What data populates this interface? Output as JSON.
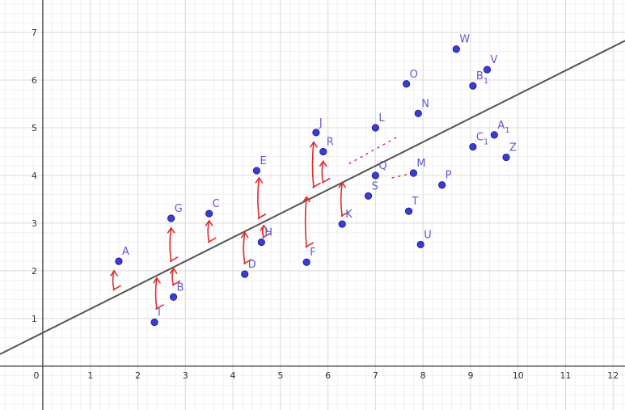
{
  "chart_data": {
    "type": "scatter",
    "title": "",
    "xlabel": "",
    "ylabel": "",
    "xlim": [
      -0.9,
      12.25
    ],
    "ylim": [
      -0.92,
      7.68
    ],
    "grid": true,
    "x_ticks": [
      0,
      1,
      2,
      3,
      4,
      5,
      6,
      7,
      8,
      9,
      10,
      11,
      12
    ],
    "y_ticks": [
      1,
      2,
      3,
      4,
      5,
      6,
      7
    ],
    "x_tick_labels": [
      "0",
      "1",
      "2",
      "3",
      "4",
      "5",
      "6",
      "7",
      "8",
      "9",
      "10",
      "11",
      "12"
    ],
    "y_tick_labels": [
      "1",
      "2",
      "3",
      "4",
      "5",
      "6",
      "7"
    ],
    "colors": {
      "point": "#3b3bd9",
      "label": "#5b5bd6",
      "line": "#555555",
      "residual": "#e02b2b",
      "grid": "#e6e6e6"
    },
    "points": [
      {
        "id": "A",
        "main": "A",
        "sub": "",
        "x": 1.6,
        "y": 2.2
      },
      {
        "id": "B",
        "main": "B",
        "sub": "",
        "x": 2.75,
        "y": 1.45
      },
      {
        "id": "C",
        "main": "C",
        "sub": "",
        "x": 3.5,
        "y": 3.2
      },
      {
        "id": "D",
        "main": "D",
        "sub": "",
        "x": 4.25,
        "y": 1.93
      },
      {
        "id": "E",
        "main": "E",
        "sub": "",
        "x": 4.5,
        "y": 4.1
      },
      {
        "id": "F",
        "main": "F",
        "sub": "",
        "x": 5.55,
        "y": 2.18
      },
      {
        "id": "G",
        "main": "G",
        "sub": "",
        "x": 2.7,
        "y": 3.1
      },
      {
        "id": "H",
        "main": "H",
        "sub": "",
        "x": 4.6,
        "y": 2.6
      },
      {
        "id": "I",
        "main": "I",
        "sub": "",
        "x": 2.35,
        "y": 0.92
      },
      {
        "id": "J",
        "main": "J",
        "sub": "",
        "x": 5.75,
        "y": 4.9
      },
      {
        "id": "K",
        "main": "K",
        "sub": "",
        "x": 6.3,
        "y": 2.98
      },
      {
        "id": "L",
        "main": "L",
        "sub": "",
        "x": 7.0,
        "y": 5.0
      },
      {
        "id": "M",
        "main": "M",
        "sub": "",
        "x": 7.8,
        "y": 4.05
      },
      {
        "id": "N",
        "main": "N",
        "sub": "",
        "x": 7.9,
        "y": 5.3
      },
      {
        "id": "O",
        "main": "O",
        "sub": "",
        "x": 7.65,
        "y": 5.92
      },
      {
        "id": "P",
        "main": "P",
        "sub": "",
        "x": 8.4,
        "y": 3.8
      },
      {
        "id": "Q",
        "main": "Q",
        "sub": "",
        "x": 7.0,
        "y": 4.0
      },
      {
        "id": "R",
        "main": "R",
        "sub": "",
        "x": 5.9,
        "y": 4.5
      },
      {
        "id": "S",
        "main": "S",
        "sub": "",
        "x": 6.85,
        "y": 3.57
      },
      {
        "id": "T",
        "main": "T",
        "sub": "",
        "x": 7.7,
        "y": 3.25
      },
      {
        "id": "U",
        "main": "U",
        "sub": "",
        "x": 7.95,
        "y": 2.55
      },
      {
        "id": "V",
        "main": "V",
        "sub": "",
        "x": 9.35,
        "y": 6.22
      },
      {
        "id": "W",
        "main": "W",
        "sub": "",
        "x": 8.7,
        "y": 6.65
      },
      {
        "id": "Z",
        "main": "Z",
        "sub": "",
        "x": 9.75,
        "y": 4.38
      },
      {
        "id": "A1",
        "main": "A",
        "sub": "1",
        "x": 9.5,
        "y": 4.85
      },
      {
        "id": "B1",
        "main": "B",
        "sub": "1",
        "x": 9.05,
        "y": 5.88
      },
      {
        "id": "C1",
        "main": "C",
        "sub": "1",
        "x": 9.05,
        "y": 4.6
      }
    ],
    "regression_line": {
      "slope": 0.5,
      "intercept": 0.7
    },
    "residual_arrows": [
      {
        "x": 1.5,
        "y1": 2.0,
        "y2": 1.6
      },
      {
        "x": 2.4,
        "y1": 1.85,
        "y2": 1.2
      },
      {
        "x": 2.75,
        "y1": 2.05,
        "y2": 1.7
      },
      {
        "x": 2.7,
        "y1": 2.9,
        "y2": 2.2
      },
      {
        "x": 3.5,
        "y1": 3.05,
        "y2": 2.6
      },
      {
        "x": 4.25,
        "y1": 2.8,
        "y2": 2.15
      },
      {
        "x": 4.55,
        "y1": 3.95,
        "y2": 3.1
      },
      {
        "x": 4.65,
        "y1": 2.95,
        "y2": 2.7
      },
      {
        "x": 5.55,
        "y1": 3.55,
        "y2": 2.5
      },
      {
        "x": 5.7,
        "y1": 4.7,
        "y2": 3.75
      },
      {
        "x": 5.9,
        "y1": 4.3,
        "y2": 3.85
      },
      {
        "x": 6.3,
        "y1": 3.85,
        "y2": 3.15
      }
    ],
    "dashed_annotation": [
      {
        "x1": 6.45,
        "y1": 4.25,
        "x2": 7.45,
        "y2": 4.8
      },
      {
        "x1": 7.35,
        "y1": 3.95,
        "x2": 7.8,
        "y2": 4.05
      }
    ]
  }
}
